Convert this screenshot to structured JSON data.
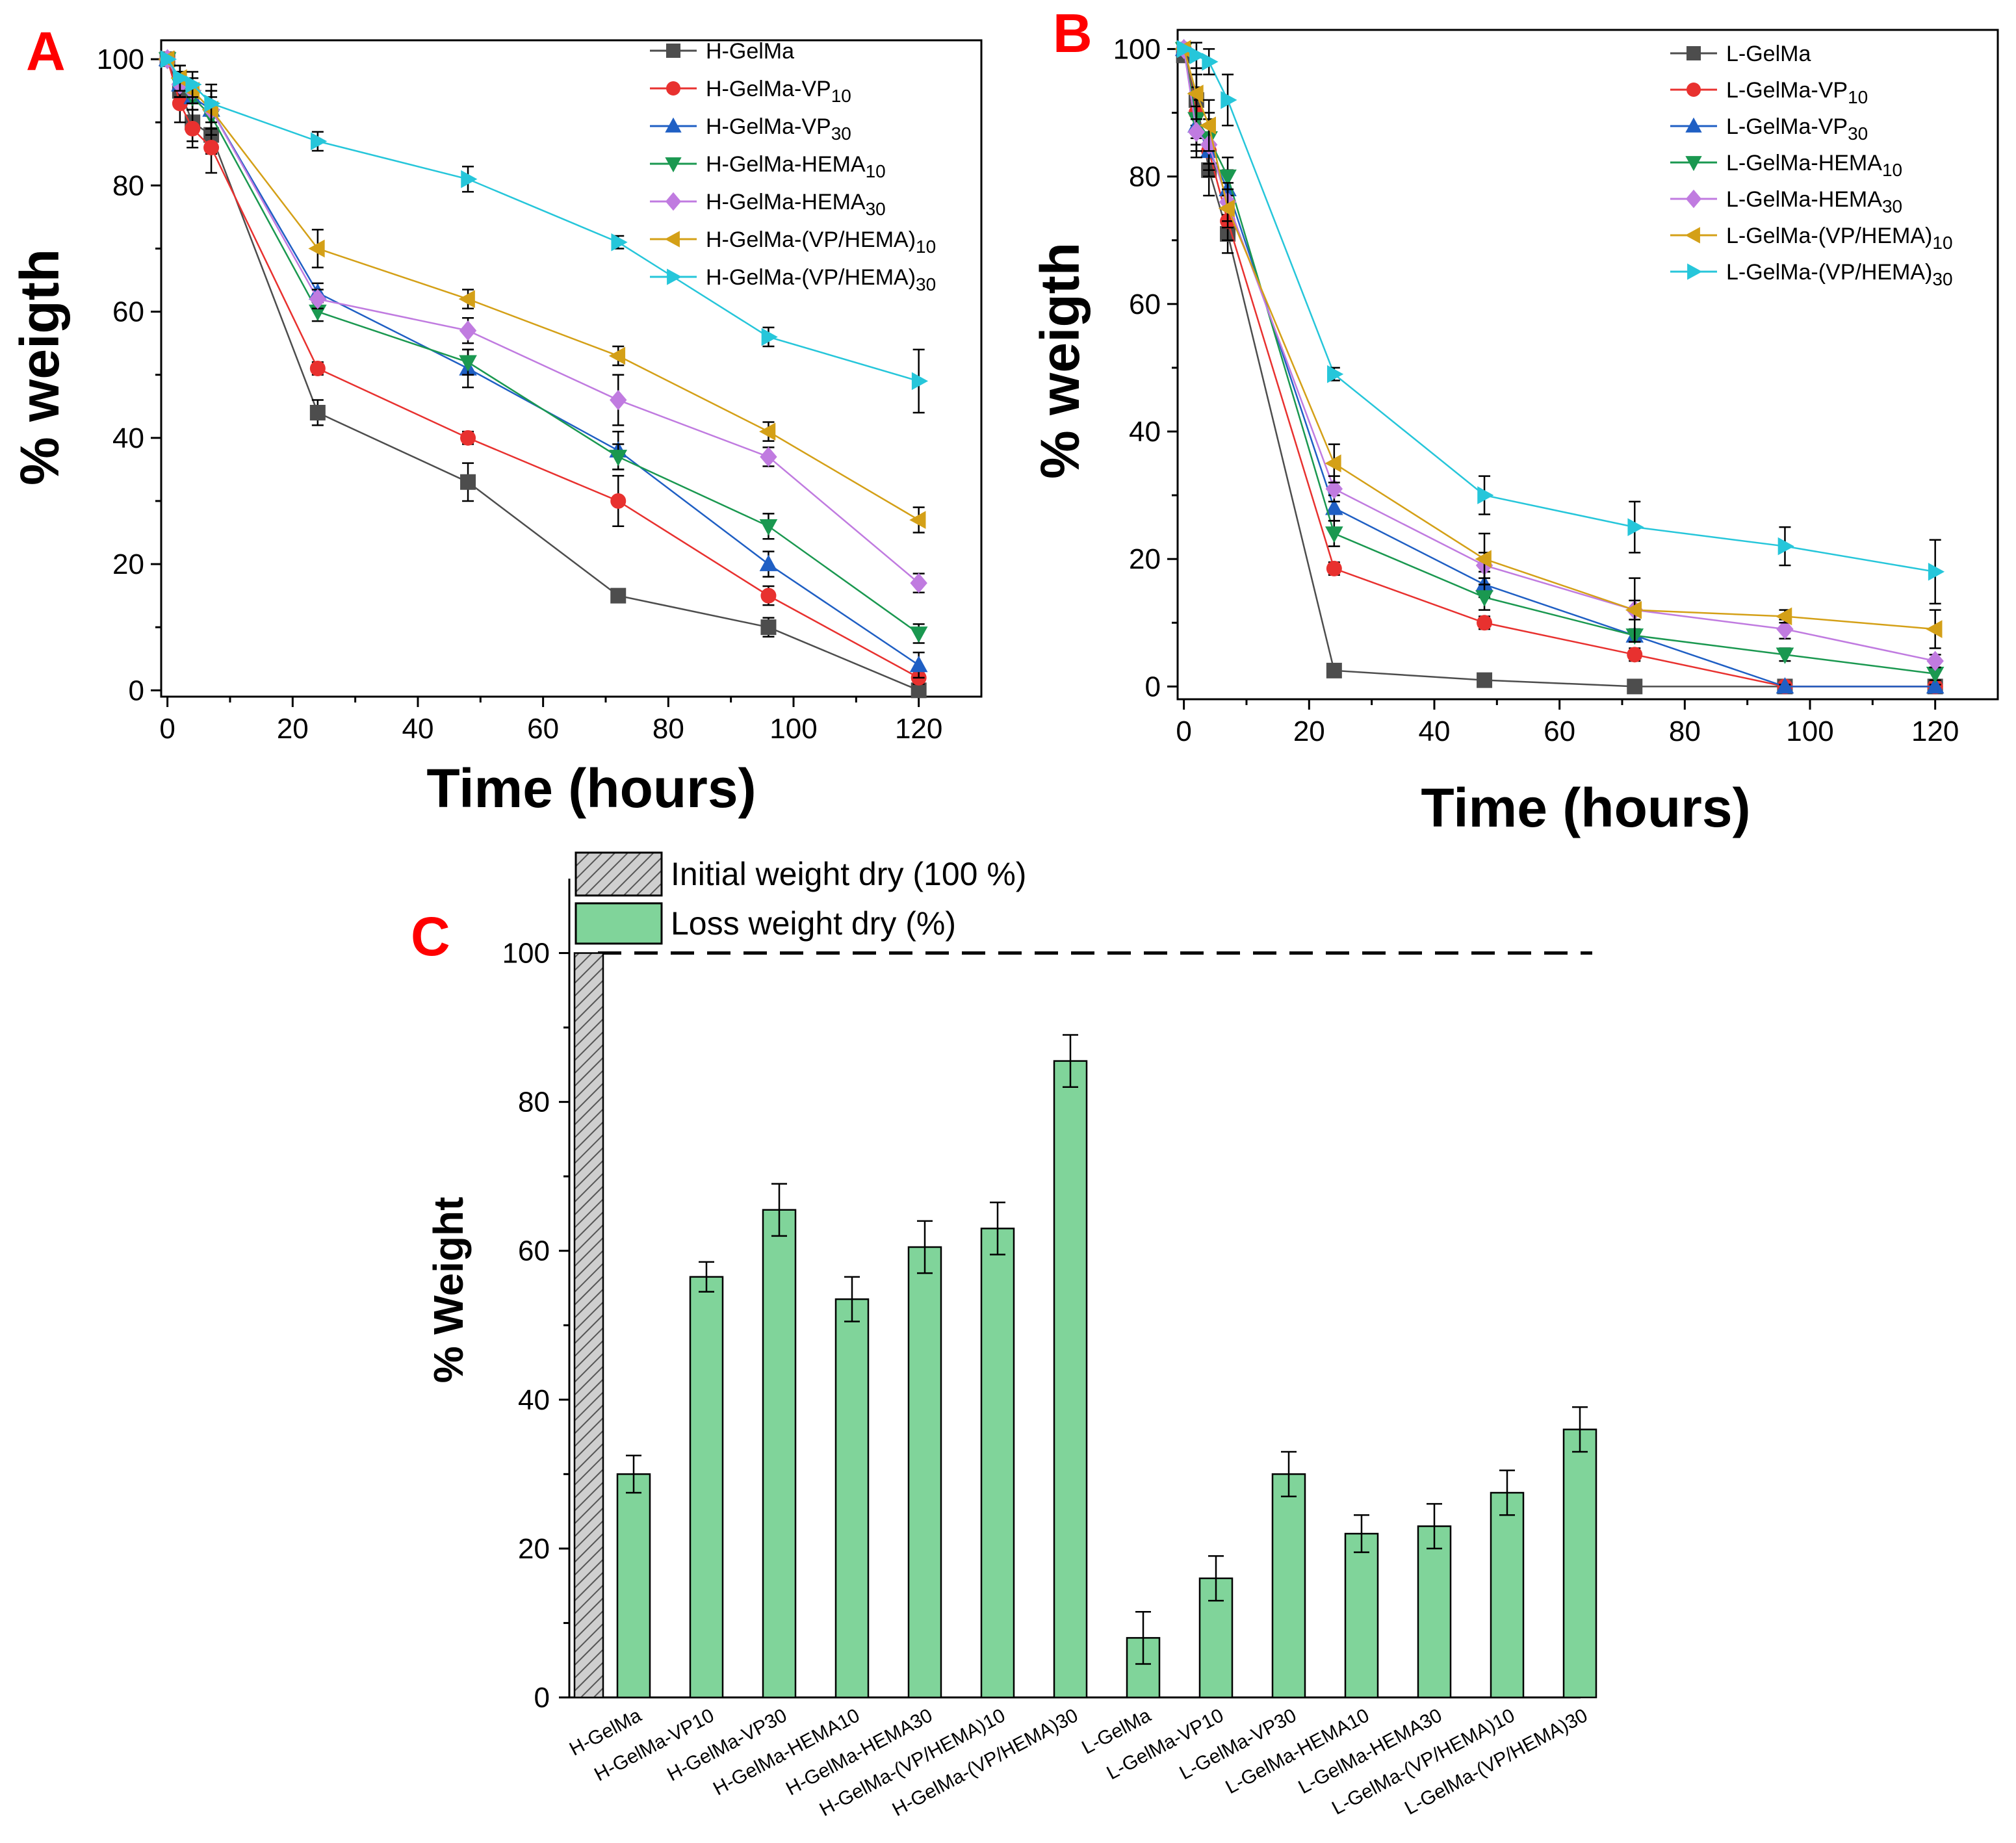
{
  "chart_data": [
    {
      "type": "line",
      "panel": "A",
      "title": "",
      "xlabel": "Time (hours)",
      "ylabel": "% weigth",
      "xlim": [
        -1,
        130
      ],
      "ylim": [
        -1,
        103
      ],
      "xticks": [
        0,
        20,
        40,
        60,
        80,
        100,
        120
      ],
      "yticks": [
        0,
        20,
        40,
        60,
        80,
        100
      ],
      "legend_position": "top-right",
      "x": [
        0,
        2,
        4,
        7,
        24,
        48,
        72,
        96,
        120
      ],
      "series": [
        {
          "name": "H-GelMa",
          "label_base": "H-GelMa",
          "label_sub": "",
          "color": "#4d4d4d",
          "marker": "square",
          "values": [
            100,
            95,
            90,
            88,
            44,
            33,
            15,
            10,
            0
          ],
          "errors": [
            0,
            2,
            3,
            3,
            2,
            3,
            1,
            1.5,
            0
          ]
        },
        {
          "name": "H-GelMa-VP10",
          "label_base": "H-GelMa-VP",
          "label_sub": "10",
          "color": "#e8312f",
          "marker": "circle",
          "values": [
            100,
            93,
            89,
            86,
            51,
            40,
            30,
            15,
            2
          ],
          "errors": [
            0,
            3,
            3,
            4,
            1,
            1,
            4,
            1.5,
            1
          ]
        },
        {
          "name": "H-GelMa-VP30",
          "label_base": "H-GelMa-VP",
          "label_sub": "30",
          "color": "#1f5fc4",
          "marker": "triangle-up",
          "values": [
            100,
            96,
            94,
            92,
            63,
            51,
            38,
            20,
            4
          ],
          "errors": [
            0,
            2,
            2,
            3,
            1.5,
            3,
            3,
            2,
            2
          ]
        },
        {
          "name": "H-GelMa-HEMA10",
          "label_base": "H-GelMa-HEMA",
          "label_sub": "10",
          "color": "#1a9850",
          "marker": "triangle-down",
          "values": [
            100,
            96,
            94,
            91,
            60,
            52,
            37,
            26,
            9
          ],
          "errors": [
            0,
            2,
            2,
            3,
            1.5,
            2,
            2,
            2,
            1.5
          ]
        },
        {
          "name": "H-GelMa-HEMA30",
          "label_base": "H-GelMa-HEMA",
          "label_sub": "30",
          "color": "#c07be0",
          "marker": "diamond",
          "values": [
            100,
            96,
            95,
            92,
            62,
            57,
            46,
            37,
            17
          ],
          "errors": [
            0,
            2,
            2,
            3,
            1.5,
            2,
            4,
            1.5,
            1.5
          ]
        },
        {
          "name": "H-GelMa-(VP/HEMA)10",
          "label_base": "H-GelMa-(VP/HEMA)",
          "label_sub": "10",
          "color": "#d4a017",
          "marker": "triangle-left",
          "values": [
            100,
            97,
            95,
            92,
            70,
            62,
            53,
            41,
            27
          ],
          "errors": [
            0,
            2,
            2,
            3,
            3,
            1.5,
            1.5,
            1.5,
            2
          ]
        },
        {
          "name": "H-GelMa-(VP/HEMA)30",
          "label_base": "H-GelMa-(VP/HEMA)",
          "label_sub": "30",
          "color": "#26c6da",
          "marker": "triangle-right",
          "values": [
            100,
            97,
            96,
            93,
            87,
            81,
            71,
            56,
            49
          ],
          "errors": [
            0,
            2,
            2,
            3,
            1.5,
            2,
            1,
            1.5,
            5
          ]
        }
      ]
    },
    {
      "type": "line",
      "panel": "B",
      "title": "",
      "xlabel": "Time (hours)",
      "ylabel": "% weigth",
      "xlim": [
        -1,
        130
      ],
      "ylim": [
        -2,
        103
      ],
      "xticks": [
        0,
        20,
        40,
        60,
        80,
        100,
        120
      ],
      "yticks": [
        0,
        20,
        40,
        60,
        80,
        100
      ],
      "legend_position": "top-right",
      "x": [
        0,
        2,
        4,
        7,
        24,
        48,
        72,
        96,
        120
      ],
      "series": [
        {
          "name": "L-GelMa",
          "label_base": "L-GelMa",
          "label_sub": "",
          "color": "#4d4d4d",
          "marker": "square",
          "values": [
            99,
            92,
            81,
            71,
            2.5,
            1,
            0,
            0,
            0
          ],
          "errors": [
            0,
            4,
            4,
            3,
            0.5,
            0.5,
            0.3,
            0.3,
            0.3
          ]
        },
        {
          "name": "L-GelMa-VP10",
          "label_base": "L-GelMa-VP",
          "label_sub": "10",
          "color": "#e8312f",
          "marker": "circle",
          "values": [
            100,
            90,
            84,
            73,
            18.5,
            10,
            5,
            0,
            0
          ],
          "errors": [
            0,
            4,
            4,
            3,
            1,
            1,
            1,
            0.3,
            0.3
          ]
        },
        {
          "name": "L-GelMa-VP30",
          "label_base": "L-GelMa-VP",
          "label_sub": "30",
          "color": "#1f5fc4",
          "marker": "triangle-up",
          "values": [
            100,
            88,
            84,
            78,
            28,
            16,
            8,
            0,
            0
          ],
          "errors": [
            0,
            4,
            4,
            3,
            2,
            2,
            1,
            0.3,
            0.3
          ]
        },
        {
          "name": "L-GelMa-HEMA10",
          "label_base": "L-GelMa-HEMA",
          "label_sub": "10",
          "color": "#1a9850",
          "marker": "triangle-down",
          "values": [
            100,
            89,
            86,
            80,
            24,
            14,
            8,
            5,
            2
          ],
          "errors": [
            0,
            4,
            4,
            3,
            2,
            2,
            1,
            1,
            1
          ]
        },
        {
          "name": "L-GelMa-HEMA30",
          "label_base": "L-GelMa-HEMA",
          "label_sub": "30",
          "color": "#c07be0",
          "marker": "diamond",
          "values": [
            100,
            87,
            85,
            76,
            31,
            19,
            12,
            9,
            4
          ],
          "errors": [
            0,
            4,
            4,
            3,
            2,
            2,
            1.5,
            1.5,
            1
          ]
        },
        {
          "name": "L-GelMa-(VP/HEMA)10",
          "label_base": "L-GelMa-(VP/HEMA)",
          "label_sub": "10",
          "color": "#d4a017",
          "marker": "triangle-left",
          "values": [
            100,
            93,
            88,
            75,
            35,
            20,
            12,
            11,
            9
          ],
          "errors": [
            0,
            4,
            4,
            3,
            3,
            4,
            5,
            1,
            3
          ]
        },
        {
          "name": "L-GelMa-(VP/HEMA)30",
          "label_base": "L-GelMa-(VP/HEMA)",
          "label_sub": "30",
          "color": "#26c6da",
          "marker": "triangle-right",
          "values": [
            100,
            99,
            98,
            92,
            49,
            30,
            25,
            22,
            18
          ],
          "errors": [
            0,
            2,
            2,
            4,
            1,
            3,
            4,
            3,
            5
          ]
        }
      ]
    },
    {
      "type": "bar",
      "panel": "C",
      "title": "",
      "xlabel": "",
      "ylabel": "% Weight",
      "ylim": [
        0,
        110
      ],
      "yticks": [
        0,
        20,
        40,
        60,
        80,
        100
      ],
      "legend_position": "top-left",
      "reference_line": 100,
      "initial_bar": {
        "name": "Initial weight dry (100 %)",
        "value": 100,
        "color": "#c9c9c9",
        "hatch": true
      },
      "loss_series_name": "Loss weight dry (%)",
      "loss_color": "#80d49a",
      "categories": [
        "H-GelMa",
        "H-GelMa-VP10",
        "H-GelMa-VP30",
        "H-GelMa-HEMA10",
        "H-GelMa-HEMA30",
        "H-GelMa-(VP/HEMA)10",
        "H-GelMa-(VP/HEMA)30",
        "L-GelMa",
        "L-GelMa-VP10",
        "L-GelMa-VP30",
        "L-GelMa-HEMA10",
        "L-GelMa-HEMA30",
        "L-GelMa-(VP/HEMA)10",
        "L-GelMa-(VP/HEMA)30"
      ],
      "values": [
        30,
        56.5,
        65.5,
        53.5,
        60.5,
        63,
        85.5,
        8,
        16,
        30,
        22,
        23,
        27.5,
        36
      ],
      "errors": [
        2.5,
        2,
        3.5,
        3,
        3.5,
        3.5,
        3.5,
        3.5,
        3,
        3,
        2.5,
        3,
        3,
        3
      ]
    }
  ]
}
